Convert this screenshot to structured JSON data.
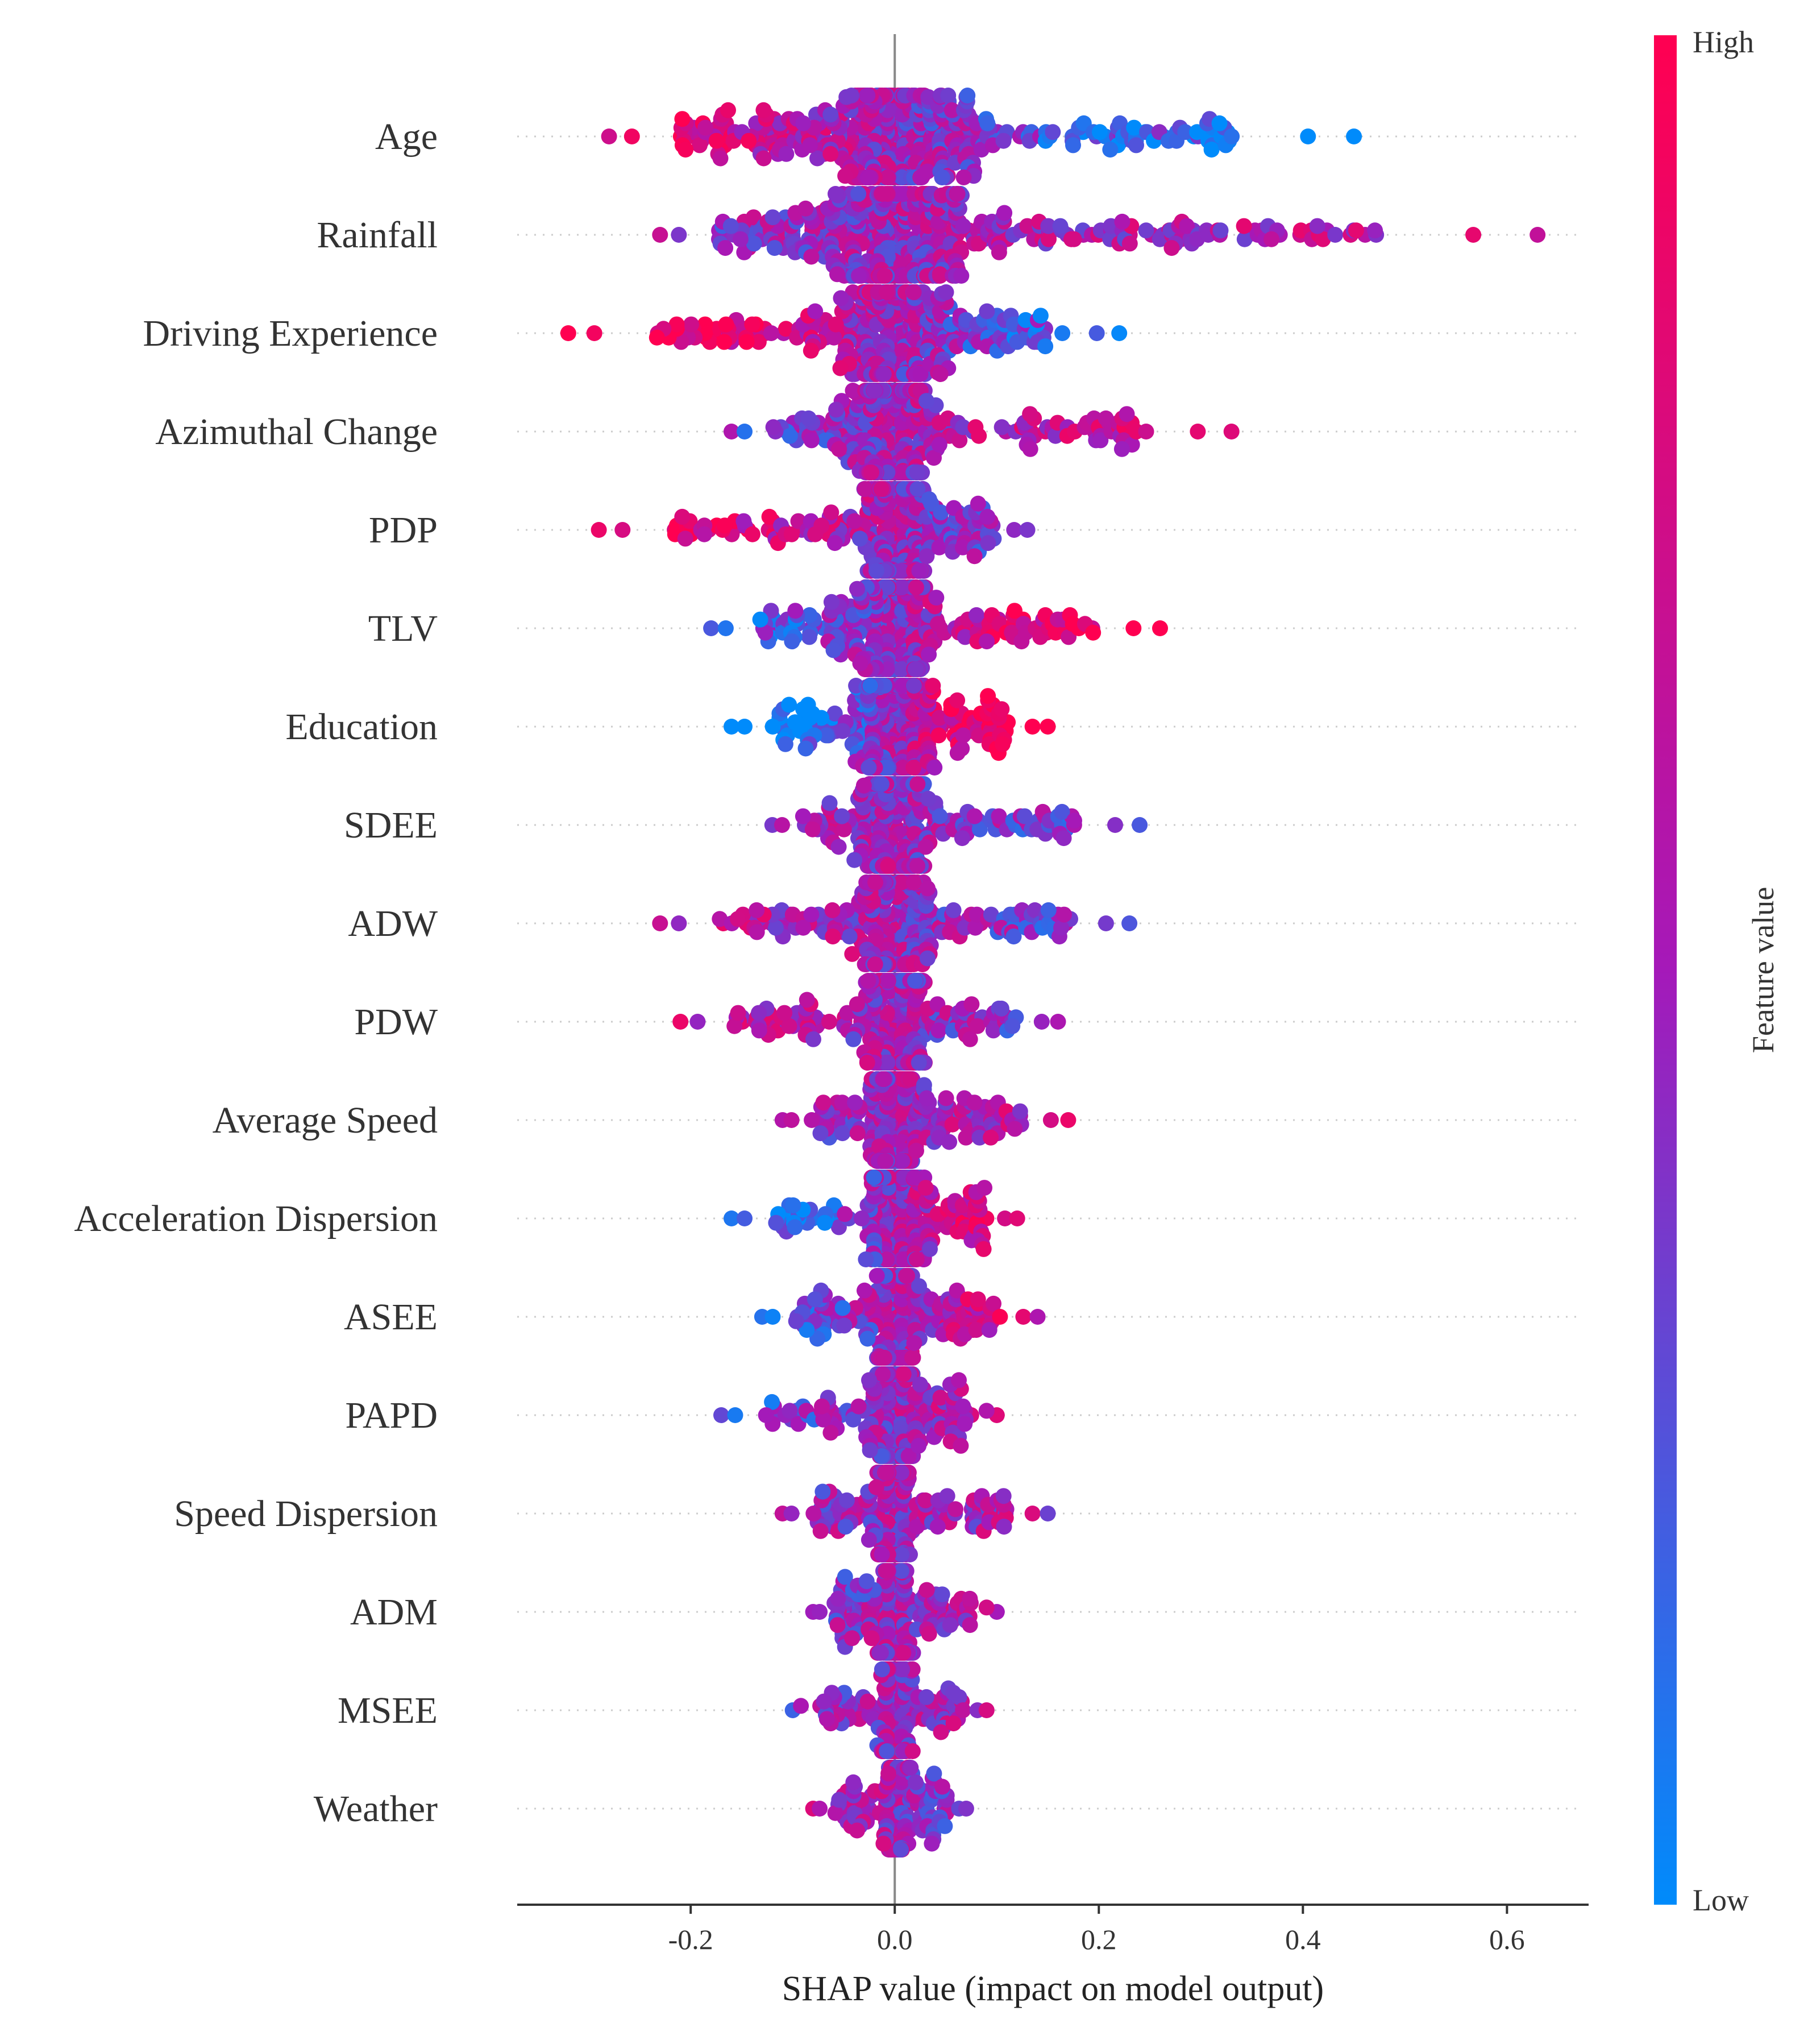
{
  "chart_data": {
    "type": "scatter",
    "subtype": "shap-beeswarm",
    "xlabel": "SHAP value (impact on model output)",
    "xlim": [
      -0.37,
      0.68
    ],
    "xticks": [
      -0.2,
      0.0,
      0.2,
      0.4,
      0.6
    ],
    "xtick_labels": [
      "-0.2",
      "0.0",
      "0.2",
      "0.4",
      "0.6"
    ],
    "colorbar": {
      "label": "Feature value",
      "high_label": "High",
      "low_label": "Low",
      "high_color": "#ff0051",
      "mid_color": "#a519b9",
      "low_color": "#008bfb"
    },
    "features": [
      {
        "name": "Age",
        "min": -0.28,
        "max": 0.45,
        "spread": 0.24,
        "trend": -1,
        "n": 520
      },
      {
        "name": "Rainfall",
        "min": -0.23,
        "max": 0.63,
        "spread": 0.24,
        "trend": 0.25,
        "n": 520
      },
      {
        "name": "Driving Experience",
        "min": -0.32,
        "max": 0.22,
        "spread": 0.22,
        "trend": -1,
        "n": 420
      },
      {
        "name": "Azimuthal Change",
        "min": -0.16,
        "max": 0.33,
        "spread": 0.2,
        "trend": 0.6,
        "n": 380
      },
      {
        "name": "PDP",
        "min": -0.29,
        "max": 0.13,
        "spread": 0.18,
        "trend": -0.8,
        "n": 340
      },
      {
        "name": "TLV",
        "min": -0.18,
        "max": 0.26,
        "spread": 0.2,
        "trend": 1,
        "n": 380
      },
      {
        "name": "Education",
        "min": -0.16,
        "max": 0.15,
        "spread": 0.22,
        "trend": 1.4,
        "n": 420
      },
      {
        "name": "SDEE",
        "min": -0.12,
        "max": 0.24,
        "spread": 0.2,
        "trend": -0.3,
        "n": 360
      },
      {
        "name": "ADW",
        "min": -0.23,
        "max": 0.23,
        "spread": 0.2,
        "trend": -0.3,
        "n": 360
      },
      {
        "name": "PDW",
        "min": -0.21,
        "max": 0.16,
        "spread": 0.2,
        "trend": -0.3,
        "n": 360
      },
      {
        "name": "Average Speed",
        "min": -0.11,
        "max": 0.17,
        "spread": 0.18,
        "trend": 0.2,
        "n": 330
      },
      {
        "name": "Acceleration Dispersion",
        "min": -0.16,
        "max": 0.12,
        "spread": 0.2,
        "trend": 0.9,
        "n": 340
      },
      {
        "name": "ASEE",
        "min": -0.13,
        "max": 0.14,
        "spread": 0.18,
        "trend": 0.5,
        "n": 320
      },
      {
        "name": "PAPD",
        "min": -0.17,
        "max": 0.1,
        "spread": 0.18,
        "trend": 0.4,
        "n": 320
      },
      {
        "name": "Speed Dispersion",
        "min": -0.11,
        "max": 0.15,
        "spread": 0.16,
        "trend": 0.1,
        "n": 300
      },
      {
        "name": "ADM",
        "min": -0.08,
        "max": 0.1,
        "spread": 0.16,
        "trend": 0.2,
        "n": 300
      },
      {
        "name": "MSEE",
        "min": -0.1,
        "max": 0.09,
        "spread": 0.15,
        "trend": 0.1,
        "n": 260
      },
      {
        "name": "Weather",
        "min": -0.08,
        "max": 0.07,
        "spread": 0.15,
        "trend": -0.3,
        "n": 240
      }
    ]
  }
}
